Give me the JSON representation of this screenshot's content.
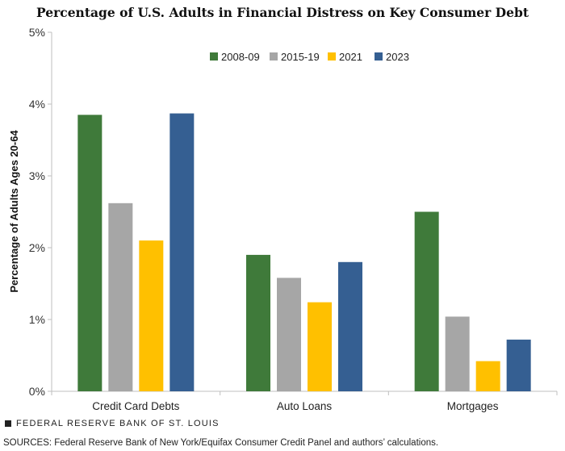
{
  "chart_data": {
    "type": "bar",
    "title": "Percentage of U.S. Adults in Financial Distress on Key Consumer Debt",
    "ylabel": "Percentage of Adults Ages 20-64",
    "xlabel": "",
    "ylim": [
      0,
      5
    ],
    "yticks": [
      0,
      1,
      2,
      3,
      4,
      5
    ],
    "ytick_labels": [
      "0%",
      "1%",
      "2%",
      "3%",
      "4%",
      "5%"
    ],
    "categories": [
      "Credit Card Debts",
      "Auto Loans",
      "Mortgages"
    ],
    "series": [
      {
        "name": "2008-09",
        "color": "#3f7a3a",
        "values": [
          3.85,
          1.9,
          2.5
        ]
      },
      {
        "name": "2015-19",
        "color": "#a6a6a6",
        "values": [
          2.62,
          1.58,
          1.04
        ]
      },
      {
        "name": "2021",
        "color": "#ffc000",
        "values": [
          2.1,
          1.24,
          0.42
        ]
      },
      {
        "name": "2023",
        "color": "#355f92",
        "values": [
          3.87,
          1.8,
          0.72
        ]
      }
    ],
    "legend_position": "top-center",
    "grid": false
  },
  "footer": {
    "brand": "FEDERAL RESERVE BANK OF ST. LOUIS",
    "sources": "SOURCES: Federal Reserve Bank of New York/Equifax Consumer Credit Panel and authors’ calculations."
  }
}
